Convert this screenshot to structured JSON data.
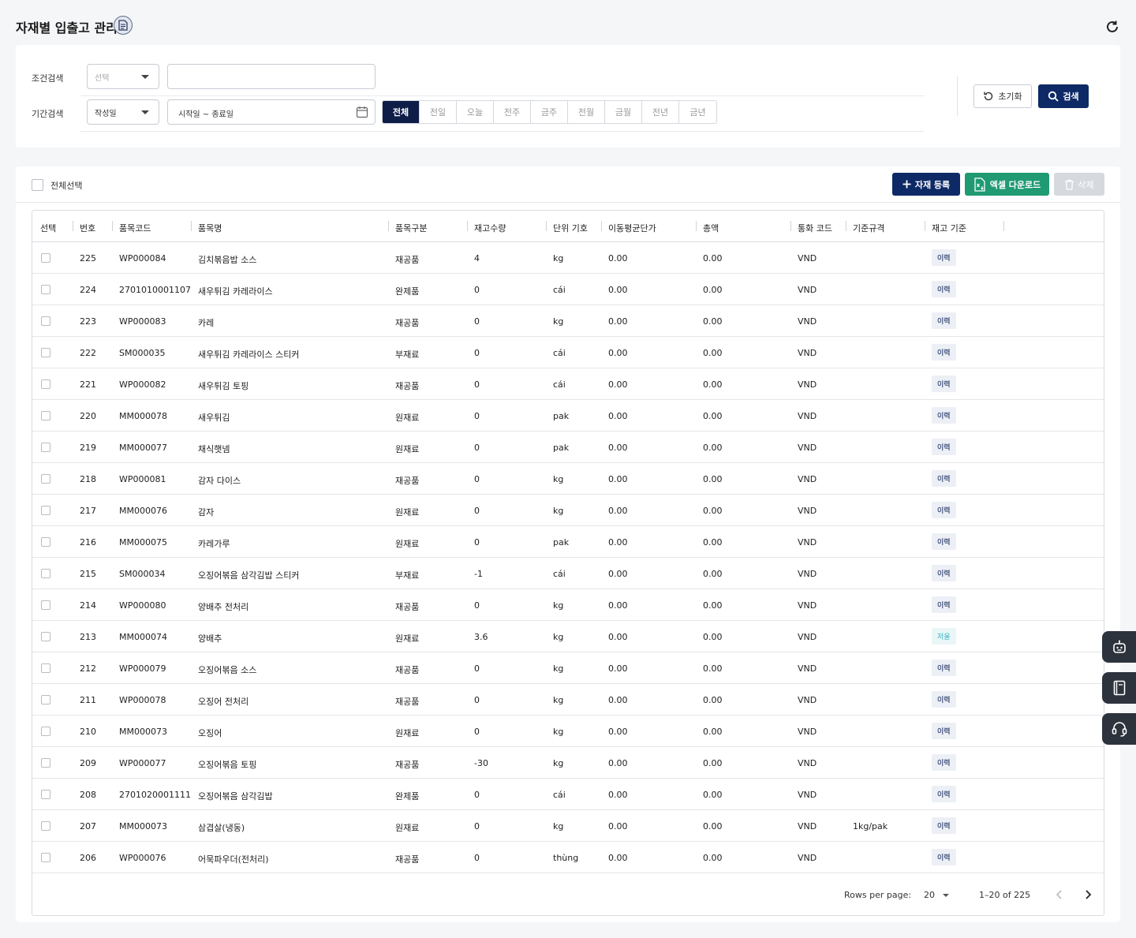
{
  "page": {
    "title": "자재별 입출고 관리"
  },
  "filter": {
    "condition_label": "조건검색",
    "condition_select": "선택",
    "period_label": "기간검색",
    "period_select": "작성일",
    "date_range_placeholder": "시작일 ~ 종료일",
    "periods": [
      "전체",
      "전일",
      "오늘",
      "전주",
      "금주",
      "전월",
      "금월",
      "전년",
      "금년"
    ],
    "active_period": "전체",
    "reset_label": "초기화",
    "search_label": "검색"
  },
  "toolbar": {
    "select_all_label": "전체선택",
    "add_label": "자재 등록",
    "excel_label": "엑셀 다운로드",
    "delete_label": "삭제"
  },
  "table": {
    "columns": [
      "선택",
      "번호",
      "품목코드",
      "품목명",
      "품목구분",
      "재고수량",
      "단위 기호",
      "이동평균단가",
      "총액",
      "통화 코드",
      "기준규격",
      "재고 기준"
    ],
    "rows": [
      {
        "no": "225",
        "code": "WP000084",
        "name": "김치볶음밥 소스",
        "type": "재공품",
        "qty": "4",
        "unit": "kg",
        "avg": "0.00",
        "total": "0.00",
        "currency": "VND",
        "spec": "",
        "basis": "이력"
      },
      {
        "no": "224",
        "code": "2701010001107",
        "name": "새우튀김 카레라이스",
        "type": "완제품",
        "qty": "0",
        "unit": "cái",
        "avg": "0.00",
        "total": "0.00",
        "currency": "VND",
        "spec": "",
        "basis": "이력"
      },
      {
        "no": "223",
        "code": "WP000083",
        "name": "카레",
        "type": "재공품",
        "qty": "0",
        "unit": "kg",
        "avg": "0.00",
        "total": "0.00",
        "currency": "VND",
        "spec": "",
        "basis": "이력"
      },
      {
        "no": "222",
        "code": "SM000035",
        "name": "새우튀김 카레라이스 스티커",
        "type": "부재료",
        "qty": "0",
        "unit": "cái",
        "avg": "0.00",
        "total": "0.00",
        "currency": "VND",
        "spec": "",
        "basis": "이력"
      },
      {
        "no": "221",
        "code": "WP000082",
        "name": "새우튀김 토핑",
        "type": "재공품",
        "qty": "0",
        "unit": "cái",
        "avg": "0.00",
        "total": "0.00",
        "currency": "VND",
        "spec": "",
        "basis": "이력"
      },
      {
        "no": "220",
        "code": "MM000078",
        "name": "새우튀김",
        "type": "원재료",
        "qty": "0",
        "unit": "pak",
        "avg": "0.00",
        "total": "0.00",
        "currency": "VND",
        "spec": "",
        "basis": "이력"
      },
      {
        "no": "219",
        "code": "MM000077",
        "name": "채식햇넴",
        "type": "원재료",
        "qty": "0",
        "unit": "pak",
        "avg": "0.00",
        "total": "0.00",
        "currency": "VND",
        "spec": "",
        "basis": "이력"
      },
      {
        "no": "218",
        "code": "WP000081",
        "name": "감자 다이스",
        "type": "재공품",
        "qty": "0",
        "unit": "kg",
        "avg": "0.00",
        "total": "0.00",
        "currency": "VND",
        "spec": "",
        "basis": "이력"
      },
      {
        "no": "217",
        "code": "MM000076",
        "name": "감자",
        "type": "원재료",
        "qty": "0",
        "unit": "kg",
        "avg": "0.00",
        "total": "0.00",
        "currency": "VND",
        "spec": "",
        "basis": "이력"
      },
      {
        "no": "216",
        "code": "MM000075",
        "name": "카레가루",
        "type": "원재료",
        "qty": "0",
        "unit": "pak",
        "avg": "0.00",
        "total": "0.00",
        "currency": "VND",
        "spec": "",
        "basis": "이력"
      },
      {
        "no": "215",
        "code": "SM000034",
        "name": "오징어볶음 삼각김밥 스티커",
        "type": "부재료",
        "qty": "-1",
        "unit": "cái",
        "avg": "0.00",
        "total": "0.00",
        "currency": "VND",
        "spec": "",
        "basis": "이력"
      },
      {
        "no": "214",
        "code": "WP000080",
        "name": "양배추 전처리",
        "type": "재공품",
        "qty": "0",
        "unit": "kg",
        "avg": "0.00",
        "total": "0.00",
        "currency": "VND",
        "spec": "",
        "basis": "이력"
      },
      {
        "no": "213",
        "code": "MM000074",
        "name": "양배추",
        "type": "원재료",
        "qty": "3.6",
        "unit": "kg",
        "avg": "0.00",
        "total": "0.00",
        "currency": "VND",
        "spec": "",
        "basis": "저울"
      },
      {
        "no": "212",
        "code": "WP000079",
        "name": "오징어볶음 소스",
        "type": "재공품",
        "qty": "0",
        "unit": "kg",
        "avg": "0.00",
        "total": "0.00",
        "currency": "VND",
        "spec": "",
        "basis": "이력"
      },
      {
        "no": "211",
        "code": "WP000078",
        "name": "오징어 전처리",
        "type": "재공품",
        "qty": "0",
        "unit": "kg",
        "avg": "0.00",
        "total": "0.00",
        "currency": "VND",
        "spec": "",
        "basis": "이력"
      },
      {
        "no": "210",
        "code": "MM000073",
        "name": "오징어",
        "type": "원재료",
        "qty": "0",
        "unit": "kg",
        "avg": "0.00",
        "total": "0.00",
        "currency": "VND",
        "spec": "",
        "basis": "이력"
      },
      {
        "no": "209",
        "code": "WP000077",
        "name": "오징어볶음 토핑",
        "type": "재공품",
        "qty": "-30",
        "unit": "kg",
        "avg": "0.00",
        "total": "0.00",
        "currency": "VND",
        "spec": "",
        "basis": "이력"
      },
      {
        "no": "208",
        "code": "2701020001111",
        "name": "오징어볶음 삼각김밥",
        "type": "완제품",
        "qty": "0",
        "unit": "cái",
        "avg": "0.00",
        "total": "0.00",
        "currency": "VND",
        "spec": "",
        "basis": "이력"
      },
      {
        "no": "207",
        "code": "MM000073",
        "name": "삼겹살(냉동)",
        "type": "원재료",
        "qty": "0",
        "unit": "kg",
        "avg": "0.00",
        "total": "0.00",
        "currency": "VND",
        "spec": "1kg/pak",
        "basis": "이력"
      },
      {
        "no": "206",
        "code": "WP000076",
        "name": "어묵파우더(전처리)",
        "type": "재공품",
        "qty": "0",
        "unit": "thùng",
        "avg": "0.00",
        "total": "0.00",
        "currency": "VND",
        "spec": "",
        "basis": "이력"
      }
    ]
  },
  "pagination": {
    "rows_per_page_label": "Rows per page:",
    "rows_per_page": "20",
    "range": "1–20 of 225"
  },
  "colors": {
    "navy": "#0e2a66",
    "green": "#1f9a72",
    "disabled": "#d6d9de"
  }
}
